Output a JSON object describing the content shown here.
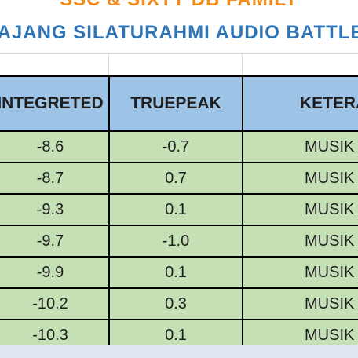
{
  "title_top": "SSC & SIXTY DB FAMILY",
  "title_main": "AJANG SILATURAHMI AUDIO BATTLE",
  "table": {
    "headers": [
      "INTEGRETED",
      "TRUEPEAK",
      "KETERA"
    ],
    "rows": [
      [
        "-8.6",
        "-0.7",
        "MUSIK"
      ],
      [
        "-8.7",
        "0.7",
        "MUSIK"
      ],
      [
        "-9.3",
        "0.1",
        "MUSIK"
      ],
      [
        "-9.7",
        "-1.0",
        "MUSIK"
      ],
      [
        "-9.9",
        "0.1",
        "MUSIK"
      ],
      [
        "-10.2",
        "0.3",
        "MUSIK"
      ],
      [
        "-10.3",
        "0.1",
        "MUSIK"
      ]
    ]
  },
  "colors": {
    "title_top": "#f28a1c",
    "title_main": "#2e74b5",
    "header_fill": "#9dc3e6",
    "cell_fill": "#c5e0b4"
  }
}
